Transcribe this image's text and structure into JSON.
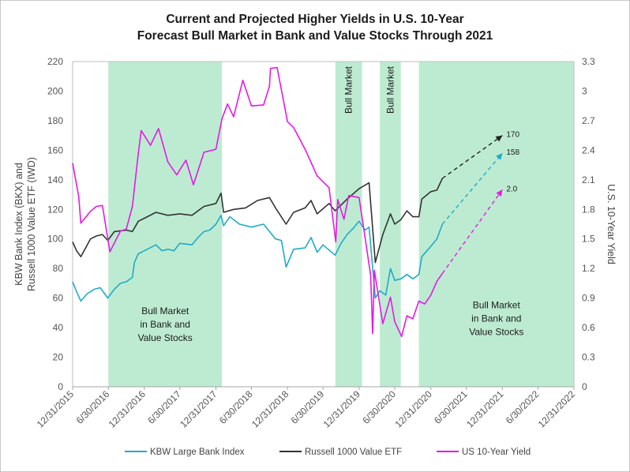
{
  "chart_data": {
    "type": "line",
    "title_line1": "Current and Projected Higher Yields in U.S. 10-Year",
    "title_line2": "Forecast Bull Market in Bank and Value Stocks Through 2021",
    "y_left_label_line1": "KBW Bank Index (BKX) and",
    "y_left_label_line2": "Russell 1000 Value ETF (IWD)",
    "y_right_label": "U.S. 10-Year Yield",
    "y_left_range": [
      0,
      220
    ],
    "y_left_ticks": [
      "0",
      "20",
      "40",
      "60",
      "80",
      "100",
      "120",
      "140",
      "160",
      "180",
      "200",
      "220"
    ],
    "y_right_range": [
      0,
      3.3
    ],
    "y_right_ticks": [
      "0",
      "0.3",
      "0.6",
      "0.9",
      "1.2",
      "1.5",
      "1.8",
      "2.1",
      "2.4",
      "2.7",
      "3",
      "3.3"
    ],
    "x_range": [
      "2015-12-31",
      "2022-12-31"
    ],
    "x_ticks": [
      "12/31/2015",
      "6/30/2016",
      "12/31/2016",
      "6/30/2017",
      "12/31/2017",
      "6/30/2018",
      "12/31/2018",
      "6/30/2019",
      "12/31/2019",
      "6/30/2020",
      "12/31/2020",
      "6/30/2021",
      "12/31/2021",
      "6/30/2022",
      "12/31/2022"
    ],
    "grid": false,
    "legend_position": "bottom",
    "shaded_regions": [
      {
        "start": "2016-06-30",
        "end": "2018-01-31",
        "label_lines": [
          "Bull Market",
          "in Bank and",
          "Value Stocks"
        ],
        "label_orientation": "horizontal",
        "label_y": 49
      },
      {
        "start": "2019-09-01",
        "end": "2020-01-15",
        "label_lines": [
          "Bull Market"
        ],
        "label_orientation": "vertical"
      },
      {
        "start": "2020-04-15",
        "end": "2020-07-31",
        "label_lines": [
          "Bull Market"
        ],
        "label_orientation": "vertical"
      },
      {
        "start": "2020-10-31",
        "end": "2022-12-31",
        "label_lines": [
          "Bull Market",
          "in Bank and",
          "Value Stocks"
        ],
        "label_orientation": "horizontal",
        "label_y": 53
      }
    ],
    "series": [
      {
        "name": "KBW Large Bank Index",
        "color": "#1EACC8",
        "axis": "left",
        "points": [
          [
            "2015-12-31",
            71
          ],
          [
            "2016-01-15",
            66
          ],
          [
            "2016-02-11",
            58
          ],
          [
            "2016-03-15",
            63
          ],
          [
            "2016-04-20",
            66
          ],
          [
            "2016-05-20",
            67
          ],
          [
            "2016-06-27",
            60
          ],
          [
            "2016-07-31",
            66
          ],
          [
            "2016-08-31",
            70
          ],
          [
            "2016-09-30",
            71
          ],
          [
            "2016-10-31",
            74
          ],
          [
            "2016-11-10",
            84
          ],
          [
            "2016-11-30",
            90
          ],
          [
            "2016-12-31",
            92
          ],
          [
            "2017-02-28",
            96
          ],
          [
            "2017-03-31",
            92
          ],
          [
            "2017-04-30",
            93
          ],
          [
            "2017-05-31",
            92
          ],
          [
            "2017-06-30",
            97
          ],
          [
            "2017-08-31",
            96
          ],
          [
            "2017-09-30",
            101
          ],
          [
            "2017-10-31",
            105
          ],
          [
            "2017-11-30",
            106
          ],
          [
            "2017-12-31",
            110
          ],
          [
            "2018-01-26",
            116
          ],
          [
            "2018-02-08",
            109
          ],
          [
            "2018-03-12",
            115
          ],
          [
            "2018-04-30",
            110
          ],
          [
            "2018-06-30",
            108
          ],
          [
            "2018-08-31",
            110
          ],
          [
            "2018-10-31",
            100
          ],
          [
            "2018-11-30",
            99
          ],
          [
            "2018-12-24",
            81
          ],
          [
            "2019-01-31",
            93
          ],
          [
            "2019-03-31",
            94
          ],
          [
            "2019-04-30",
            101
          ],
          [
            "2019-05-31",
            91
          ],
          [
            "2019-06-30",
            96
          ],
          [
            "2019-08-31",
            89
          ],
          [
            "2019-09-30",
            97
          ],
          [
            "2019-10-31",
            103
          ],
          [
            "2019-11-30",
            107
          ],
          [
            "2019-12-31",
            112
          ],
          [
            "2020-01-31",
            106
          ],
          [
            "2020-02-20",
            108
          ],
          [
            "2020-03-23",
            60
          ],
          [
            "2020-04-15",
            65
          ],
          [
            "2020-05-15",
            62
          ],
          [
            "2020-06-08",
            80
          ],
          [
            "2020-06-30",
            72
          ],
          [
            "2020-07-31",
            73
          ],
          [
            "2020-08-31",
            76
          ],
          [
            "2020-09-30",
            73
          ],
          [
            "2020-10-31",
            76
          ],
          [
            "2020-11-15",
            88
          ],
          [
            "2020-12-31",
            95
          ],
          [
            "2021-01-31",
            100
          ],
          [
            "2021-02-28",
            110
          ]
        ],
        "projection": {
          "to": [
            "2021-12-31",
            158
          ],
          "label": "158"
        }
      },
      {
        "name": "Russell 1000 Value ETF",
        "color": "#333333",
        "axis": "left",
        "points": [
          [
            "2015-12-31",
            98
          ],
          [
            "2016-01-20",
            92
          ],
          [
            "2016-02-11",
            88
          ],
          [
            "2016-03-31",
            100
          ],
          [
            "2016-04-30",
            102
          ],
          [
            "2016-05-31",
            103
          ],
          [
            "2016-06-27",
            99
          ],
          [
            "2016-07-31",
            105
          ],
          [
            "2016-09-30",
            106
          ],
          [
            "2016-10-31",
            105
          ],
          [
            "2016-11-30",
            112
          ],
          [
            "2016-12-31",
            114
          ],
          [
            "2017-02-28",
            118
          ],
          [
            "2017-04-30",
            116
          ],
          [
            "2017-06-30",
            117
          ],
          [
            "2017-08-31",
            116
          ],
          [
            "2017-10-31",
            122
          ],
          [
            "2017-12-31",
            124
          ],
          [
            "2018-01-26",
            131
          ],
          [
            "2018-02-08",
            118
          ],
          [
            "2018-03-31",
            120
          ],
          [
            "2018-05-31",
            121
          ],
          [
            "2018-07-31",
            126
          ],
          [
            "2018-09-30",
            128
          ],
          [
            "2018-10-31",
            121
          ],
          [
            "2018-12-24",
            110
          ],
          [
            "2019-01-31",
            118
          ],
          [
            "2019-03-31",
            121
          ],
          [
            "2019-04-30",
            126
          ],
          [
            "2019-05-31",
            117
          ],
          [
            "2019-07-31",
            124
          ],
          [
            "2019-08-31",
            119
          ],
          [
            "2019-10-31",
            127
          ],
          [
            "2019-12-31",
            134
          ],
          [
            "2020-02-20",
            138
          ],
          [
            "2020-03-23",
            84
          ],
          [
            "2020-04-30",
            103
          ],
          [
            "2020-06-08",
            117
          ],
          [
            "2020-06-30",
            110
          ],
          [
            "2020-07-31",
            113
          ],
          [
            "2020-08-31",
            119
          ],
          [
            "2020-09-30",
            115
          ],
          [
            "2020-10-31",
            115
          ],
          [
            "2020-11-15",
            127
          ],
          [
            "2020-12-31",
            132
          ],
          [
            "2021-01-31",
            133
          ],
          [
            "2021-02-28",
            141
          ]
        ],
        "projection": {
          "to": [
            "2021-12-31",
            170
          ],
          "label": "170"
        }
      },
      {
        "name": "US 10-Year Yield",
        "color": "#E619E6",
        "axis": "right",
        "points": [
          [
            "2015-12-31",
            2.27
          ],
          [
            "2016-01-31",
            1.93
          ],
          [
            "2016-02-11",
            1.66
          ],
          [
            "2016-03-31",
            1.78
          ],
          [
            "2016-04-30",
            1.83
          ],
          [
            "2016-05-31",
            1.84
          ],
          [
            "2016-06-30",
            1.47
          ],
          [
            "2016-07-08",
            1.37
          ],
          [
            "2016-08-31",
            1.58
          ],
          [
            "2016-09-30",
            1.6
          ],
          [
            "2016-10-31",
            1.83
          ],
          [
            "2016-11-30",
            2.37
          ],
          [
            "2016-12-15",
            2.6
          ],
          [
            "2017-01-31",
            2.45
          ],
          [
            "2017-03-13",
            2.62
          ],
          [
            "2017-04-30",
            2.28
          ],
          [
            "2017-06-14",
            2.15
          ],
          [
            "2017-07-31",
            2.3
          ],
          [
            "2017-09-07",
            2.05
          ],
          [
            "2017-10-31",
            2.38
          ],
          [
            "2017-12-31",
            2.41
          ],
          [
            "2018-01-31",
            2.72
          ],
          [
            "2018-02-28",
            2.87
          ],
          [
            "2018-03-31",
            2.74
          ],
          [
            "2018-05-17",
            3.11
          ],
          [
            "2018-06-30",
            2.85
          ],
          [
            "2018-08-31",
            2.86
          ],
          [
            "2018-09-30",
            3.05
          ],
          [
            "2018-10-05",
            3.23
          ],
          [
            "2018-11-08",
            3.24
          ],
          [
            "2018-12-31",
            2.69
          ],
          [
            "2019-01-31",
            2.63
          ],
          [
            "2019-03-31",
            2.41
          ],
          [
            "2019-05-31",
            2.14
          ],
          [
            "2019-07-31",
            2.02
          ],
          [
            "2019-09-03",
            1.47
          ],
          [
            "2019-09-13",
            1.9
          ],
          [
            "2019-10-15",
            1.7
          ],
          [
            "2019-11-08",
            1.94
          ],
          [
            "2019-12-31",
            1.92
          ],
          [
            "2020-01-31",
            1.51
          ],
          [
            "2020-02-28",
            1.13
          ],
          [
            "2020-03-09",
            0.54
          ],
          [
            "2020-03-18",
            1.18
          ],
          [
            "2020-04-30",
            0.64
          ],
          [
            "2020-06-08",
            0.91
          ],
          [
            "2020-06-30",
            0.66
          ],
          [
            "2020-08-04",
            0.51
          ],
          [
            "2020-08-31",
            0.72
          ],
          [
            "2020-09-30",
            0.69
          ],
          [
            "2020-10-31",
            0.87
          ],
          [
            "2020-11-30",
            0.84
          ],
          [
            "2020-12-31",
            0.93
          ],
          [
            "2021-01-31",
            1.07
          ],
          [
            "2021-02-28",
            1.15
          ]
        ],
        "projection": {
          "to": [
            "2021-12-31",
            2.0
          ],
          "label": "2.0"
        }
      }
    ]
  }
}
